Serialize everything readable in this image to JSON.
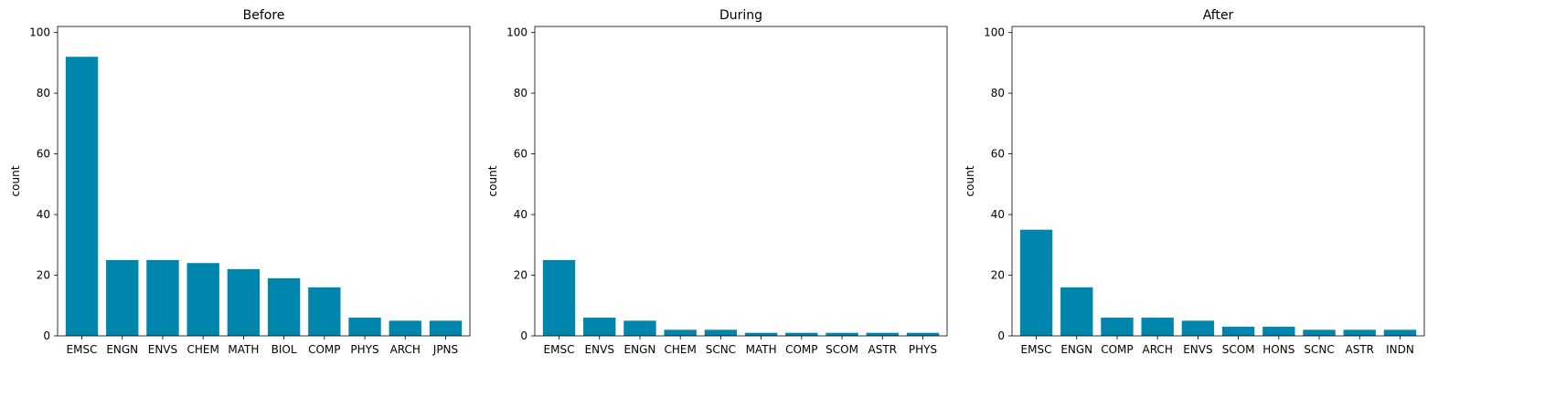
{
  "chart_data": [
    {
      "type": "bar",
      "title": "Before",
      "xlabel": "",
      "ylabel": "count",
      "ylim": [
        0,
        102
      ],
      "yticks": [
        0,
        20,
        40,
        60,
        80,
        100
      ],
      "categories": [
        "EMSC",
        "ENGN",
        "ENVS",
        "CHEM",
        "MATH",
        "BIOL",
        "COMP",
        "PHYS",
        "ARCH",
        "JPNS"
      ],
      "values": [
        92,
        25,
        25,
        24,
        22,
        19,
        16,
        6,
        5,
        5
      ],
      "color": "#0086ad"
    },
    {
      "type": "bar",
      "title": "During",
      "xlabel": "",
      "ylabel": "count",
      "ylim": [
        0,
        102
      ],
      "yticks": [
        0,
        20,
        40,
        60,
        80,
        100
      ],
      "categories": [
        "EMSC",
        "ENVS",
        "ENGN",
        "CHEM",
        "SCNC",
        "MATH",
        "COMP",
        "SCOM",
        "ASTR",
        "PHYS"
      ],
      "values": [
        25,
        6,
        5,
        2,
        2,
        1,
        1,
        1,
        1,
        1
      ],
      "color": "#0086ad"
    },
    {
      "type": "bar",
      "title": "After",
      "xlabel": "",
      "ylabel": "count",
      "ylim": [
        0,
        102
      ],
      "yticks": [
        0,
        20,
        40,
        60,
        80,
        100
      ],
      "categories": [
        "EMSC",
        "ENGN",
        "COMP",
        "ARCH",
        "ENVS",
        "SCOM",
        "HONS",
        "SCNC",
        "ASTR",
        "INDN"
      ],
      "values": [
        35,
        16,
        6,
        6,
        5,
        3,
        3,
        2,
        2,
        2
      ],
      "color": "#0086ad"
    }
  ]
}
